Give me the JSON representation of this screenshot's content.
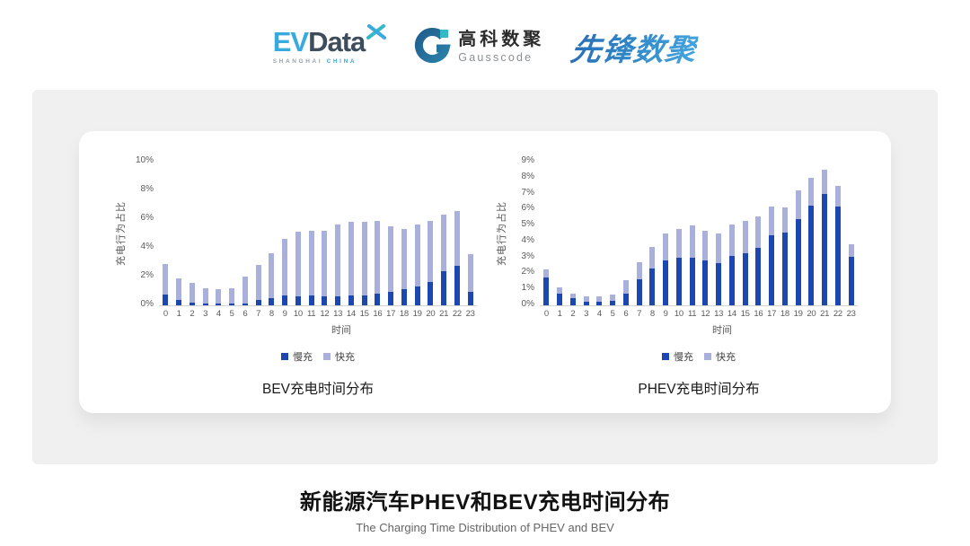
{
  "header": {
    "evdata": {
      "ev": "EV",
      "data": "Data",
      "sub_left": "SHANGHAI",
      "sub_right": "CHINA"
    },
    "gausscode": {
      "cn": "高科数聚",
      "en": "Gausscode"
    },
    "xianfeng": {
      "text": "先锋数聚"
    }
  },
  "colors": {
    "slow_charge": "#1c46b0",
    "fast_charge": "#a9b0dc",
    "panel_bg": "#f0f0f0",
    "axis_text": "#595959"
  },
  "chart_data": [
    {
      "type": "bar",
      "stacked": true,
      "title": "BEV充电时间分布",
      "xlabel": "时间",
      "ylabel": "充电行为占比",
      "ylim": [
        0,
        10
      ],
      "ytick_step": 2,
      "ytick_suffix": "%",
      "grid": false,
      "legend_position": "bottom",
      "categories": [
        "0",
        "1",
        "2",
        "3",
        "4",
        "5",
        "6",
        "7",
        "8",
        "9",
        "10",
        "11",
        "12",
        "13",
        "14",
        "15",
        "16",
        "17",
        "18",
        "19",
        "20",
        "21",
        "22",
        "23"
      ],
      "series": [
        {
          "name": "慢充",
          "color": "#1c46b0",
          "values": [
            0.75,
            0.35,
            0.2,
            0.1,
            0.1,
            0.1,
            0.15,
            0.35,
            0.5,
            0.7,
            0.65,
            0.7,
            0.6,
            0.65,
            0.7,
            0.7,
            0.8,
            0.95,
            1.1,
            1.3,
            1.6,
            2.4,
            2.75,
            0.95
          ]
        },
        {
          "name": "快充",
          "color": "#a9b0dc",
          "values": [
            2.15,
            1.55,
            1.35,
            1.1,
            1.0,
            1.1,
            1.85,
            2.45,
            3.1,
            3.9,
            4.5,
            4.5,
            4.6,
            5.0,
            5.1,
            5.1,
            5.05,
            4.55,
            4.2,
            4.3,
            4.3,
            3.9,
            3.8,
            2.6
          ]
        }
      ]
    },
    {
      "type": "bar",
      "stacked": true,
      "title": "PHEV充电时间分布",
      "xlabel": "时间",
      "ylabel": "充电行为占比",
      "ylim": [
        0,
        9
      ],
      "ytick_step": 1,
      "ytick_suffix": "%",
      "grid": false,
      "legend_position": "bottom",
      "categories": [
        "0",
        "1",
        "2",
        "3",
        "4",
        "5",
        "6",
        "7",
        "8",
        "9",
        "10",
        "11",
        "12",
        "13",
        "14",
        "15",
        "16",
        "17",
        "18",
        "19",
        "20",
        "21",
        "22",
        "23"
      ],
      "series": [
        {
          "name": "慢充",
          "color": "#1c46b0",
          "values": [
            1.75,
            0.75,
            0.45,
            0.25,
            0.25,
            0.3,
            0.75,
            1.65,
            2.3,
            2.8,
            3.0,
            3.0,
            2.8,
            2.65,
            3.1,
            3.25,
            3.6,
            4.4,
            4.55,
            5.4,
            6.25,
            7.0,
            6.2,
            3.05
          ]
        },
        {
          "name": "快充",
          "color": "#a9b0dc",
          "values": [
            0.5,
            0.4,
            0.3,
            0.3,
            0.3,
            0.4,
            0.85,
            1.05,
            1.35,
            1.7,
            1.8,
            2.0,
            1.85,
            1.85,
            1.95,
            2.05,
            1.95,
            1.8,
            1.6,
            1.8,
            1.75,
            1.5,
            1.3,
            0.75
          ]
        }
      ]
    }
  ],
  "footer": {
    "title": "新能源汽车PHEV和BEV充电时间分布",
    "subtitle": "The Charging Time Distribution of PHEV and BEV"
  }
}
